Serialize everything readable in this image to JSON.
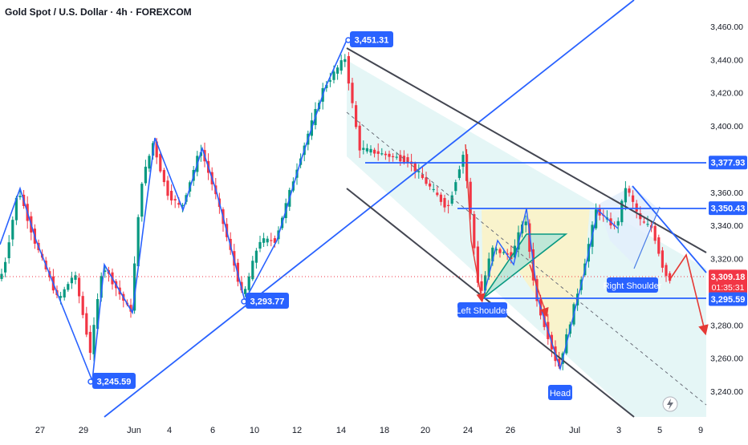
{
  "chart_title": "Gold Spot / U.S. Dollar · 4h · FOREXCOM",
  "chart_data": {
    "type": "candlestick",
    "title": "Gold Spot / U.S. Dollar · 4h · FOREXCOM",
    "ylim": [
      3225,
      3467
    ],
    "y_ticks": [
      "3,460.00",
      "3,440.00",
      "3,420.00",
      "3,400.00",
      "3,380.00",
      "3,360.00",
      "3,340.00",
      "3,320.00",
      "3,300.00",
      "3,280.00",
      "3,260.00",
      "3,240.00"
    ],
    "y_tick_values": [
      3460,
      3440,
      3420,
      3400,
      3380,
      3360,
      3340,
      3320,
      3300,
      3280,
      3260,
      3240
    ],
    "x_ticks": [
      "27",
      "29",
      "Jun",
      "4",
      "6",
      "10",
      "12",
      "14",
      "18",
      "20",
      "24",
      "26",
      "Jul",
      "3",
      "5",
      "9"
    ],
    "price_tags": {
      "resistance_1": "3,377.93",
      "resistance_2": "3,350.43",
      "current_price": "3,309.18",
      "countdown": "01:35:31",
      "support": "3,295.59"
    },
    "price_tag_values": {
      "resistance_1": 3377.93,
      "resistance_2": 3350.43,
      "current_price": 3309.18,
      "support": 3295.59
    },
    "pivot_labels": {
      "low_1": "3,245.59",
      "low_2": "3,293.77",
      "high_1": "3,451.31"
    },
    "pivot_values": {
      "low_1": 3245.59,
      "low_2": 3293.77,
      "high_1": 3451.31
    },
    "pattern_labels": {
      "left_shoulder": "Left Shoulder",
      "head": "Head",
      "right_shoulder": "Right Shoulder"
    },
    "colors": {
      "up": "#089981",
      "down": "#f23645",
      "line": "#2962ff",
      "channel": "#434651",
      "arrow": "#e53935",
      "tag": "#2962ff",
      "price_tag": "#f23645"
    }
  }
}
